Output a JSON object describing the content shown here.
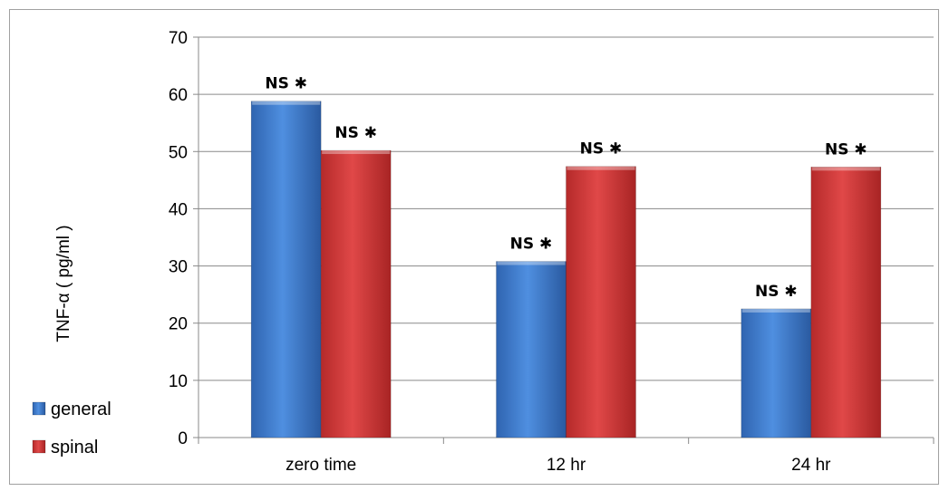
{
  "chart_data": {
    "type": "bar",
    "ylabel": "TNF-α ( pg/ml )",
    "xlabel": "",
    "ylim": [
      0,
      70
    ],
    "yticks": [
      0,
      10,
      20,
      30,
      40,
      50,
      60,
      70
    ],
    "grid": true,
    "legend_position": "left-bottom",
    "categories": [
      "zero time",
      "12 hr",
      "24 hr"
    ],
    "series": [
      {
        "name": "general",
        "color": "#3f7fd0",
        "values": [
          58.8,
          30.8,
          22.5
        ]
      },
      {
        "name": "spinal",
        "color": "#d33b3b",
        "values": [
          50.2,
          47.4,
          47.3
        ]
      }
    ],
    "annotations": [
      [
        "NS ✱",
        "NS ✱"
      ],
      [
        "NS ✱",
        "NS ✱"
      ],
      [
        "NS ✱",
        "NS ✱"
      ]
    ]
  }
}
